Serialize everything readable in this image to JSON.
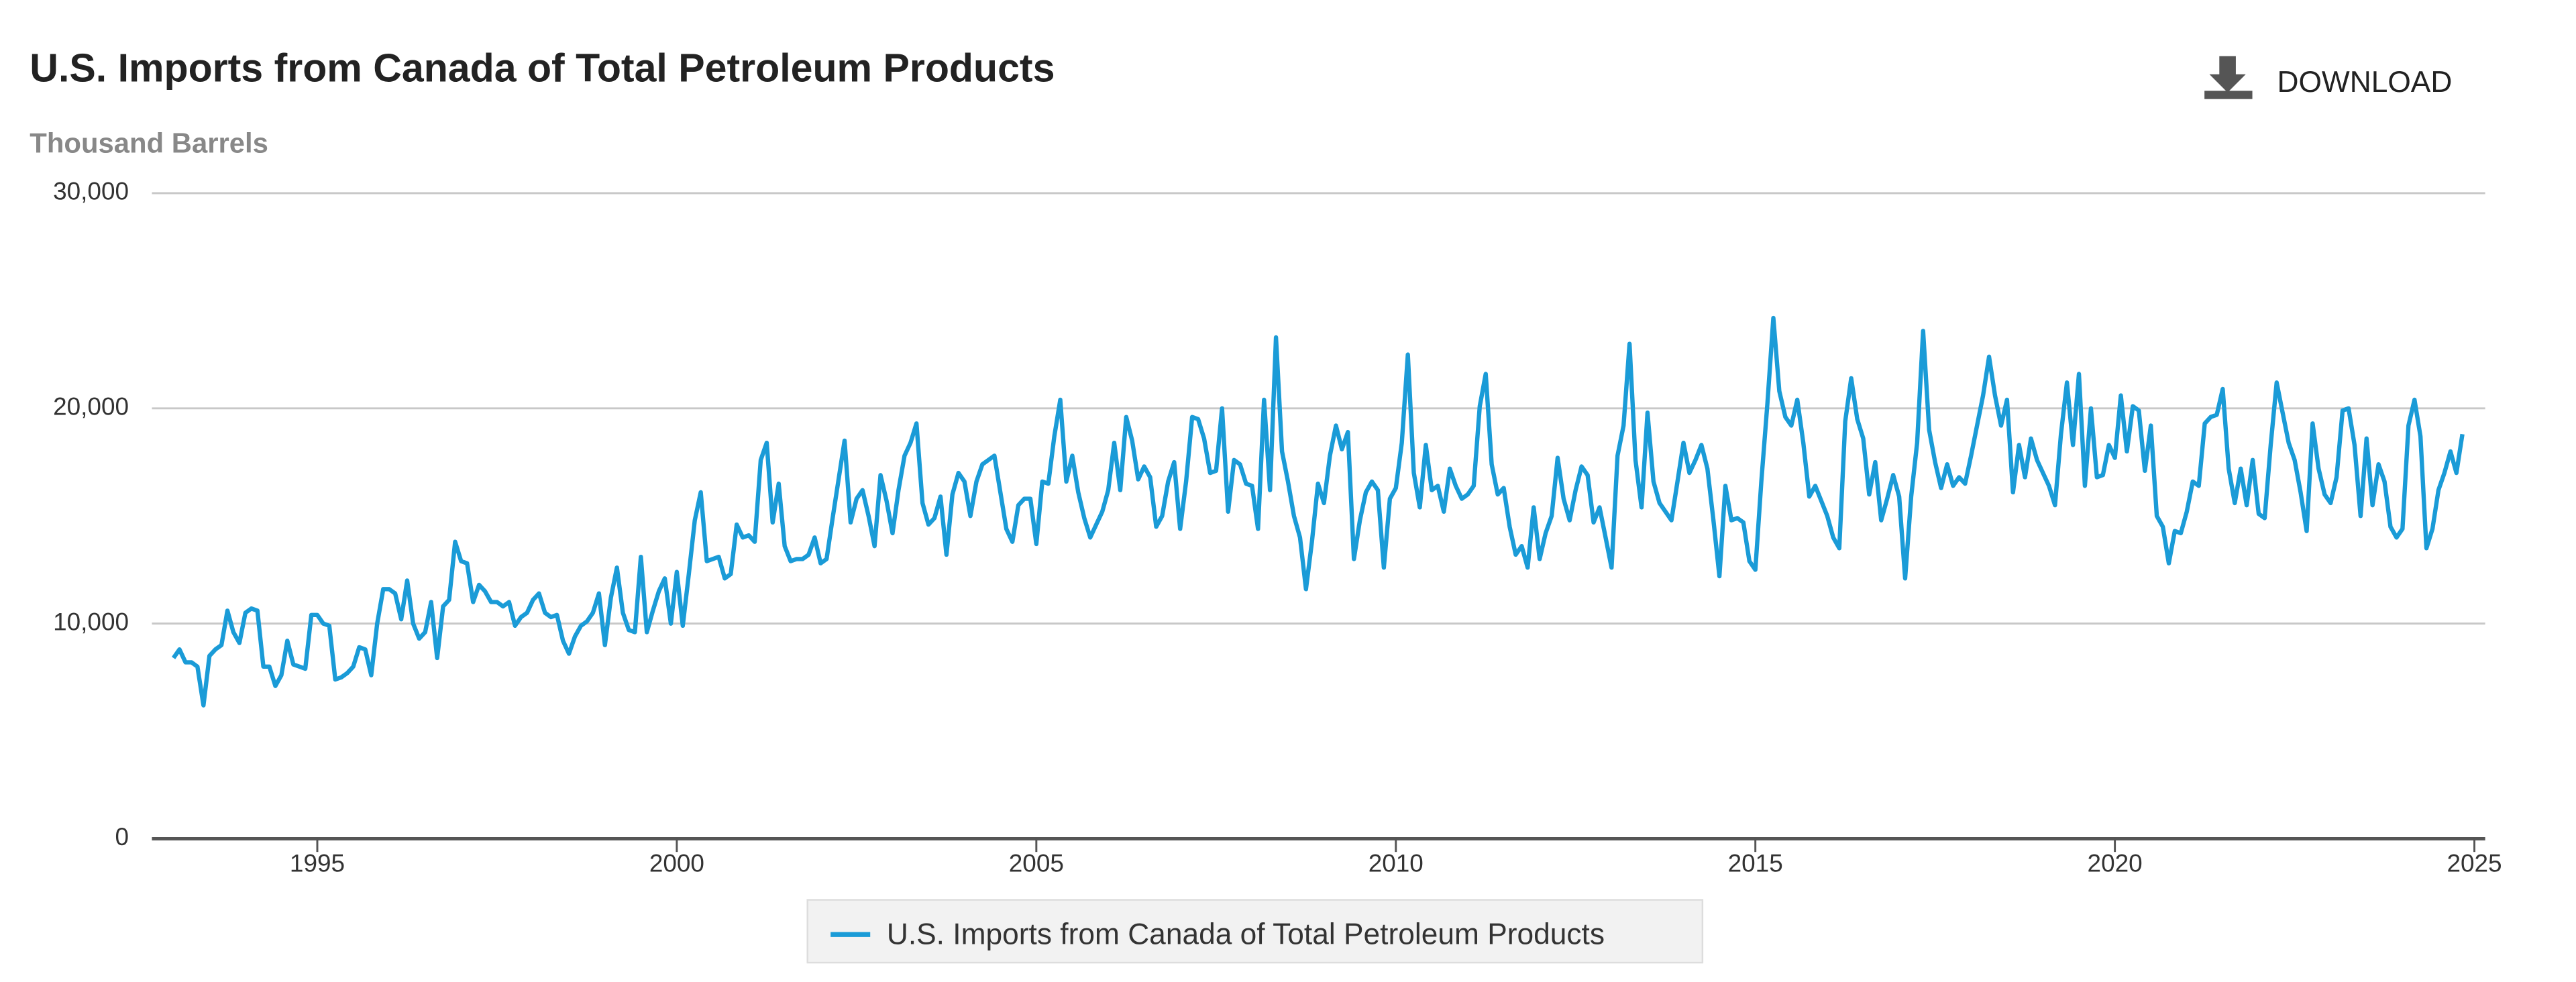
{
  "toolbar": {
    "download": "DOWNLOAD"
  },
  "chart_data": {
    "type": "line",
    "title": "U.S. Imports from Canada of Total Petroleum Products",
    "y_label": "Thousand Barrels",
    "xlim": [
      1992.7,
      2025.15
    ],
    "xticks": [
      1995,
      2000,
      2005,
      2010,
      2015,
      2020,
      2025
    ],
    "ylim": [
      0,
      30000
    ],
    "yticks": [
      0,
      {
        "value": 10000,
        "label": "10,000"
      },
      {
        "value": 20000,
        "label": "20,000"
      },
      {
        "value": 30000,
        "label": "30,000"
      }
    ],
    "grid": true,
    "legend": "bottom",
    "x": [
      1993,
      1993.083,
      1993.167,
      1993.25,
      1993.333,
      1993.417,
      1993.5,
      1993.583,
      1993.667,
      1993.75,
      1993.833,
      1993.917,
      1994,
      1994.083,
      1994.167,
      1994.25,
      1994.333,
      1994.417,
      1994.5,
      1994.583,
      1994.667,
      1994.75,
      1994.833,
      1994.917,
      1995,
      1995.083,
      1995.167,
      1995.25,
      1995.333,
      1995.417,
      1995.5,
      1995.583,
      1995.667,
      1995.75,
      1995.833,
      1995.917,
      1996,
      1996.083,
      1996.167,
      1996.25,
      1996.333,
      1996.417,
      1996.5,
      1996.583,
      1996.667,
      1996.75,
      1996.833,
      1996.917,
      1997,
      1997.083,
      1997.167,
      1997.25,
      1997.333,
      1997.417,
      1997.5,
      1997.583,
      1997.667,
      1997.75,
      1997.833,
      1997.917,
      1998,
      1998.083,
      1998.167,
      1998.25,
      1998.333,
      1998.417,
      1998.5,
      1998.583,
      1998.667,
      1998.75,
      1998.833,
      1998.917,
      1999,
      1999.083,
      1999.167,
      1999.25,
      1999.333,
      1999.417,
      1999.5,
      1999.583,
      1999.667,
      1999.75,
      1999.833,
      1999.917,
      2000,
      2000.083,
      2000.167,
      2000.25,
      2000.333,
      2000.417,
      2000.5,
      2000.583,
      2000.667,
      2000.75,
      2000.833,
      2000.917,
      2001,
      2001.083,
      2001.167,
      2001.25,
      2001.333,
      2001.417,
      2001.5,
      2001.583,
      2001.667,
      2001.75,
      2001.833,
      2001.917,
      2002,
      2002.083,
      2002.167,
      2002.25,
      2002.333,
      2002.417,
      2002.5,
      2002.583,
      2002.667,
      2002.75,
      2002.833,
      2002.917,
      2003,
      2003.083,
      2003.167,
      2003.25,
      2003.333,
      2003.417,
      2003.5,
      2003.583,
      2003.667,
      2003.75,
      2003.833,
      2003.917,
      2004,
      2004.083,
      2004.167,
      2004.25,
      2004.333,
      2004.417,
      2004.5,
      2004.583,
      2004.667,
      2004.75,
      2004.833,
      2004.917,
      2005,
      2005.083,
      2005.167,
      2005.25,
      2005.333,
      2005.417,
      2005.5,
      2005.583,
      2005.667,
      2005.75,
      2005.833,
      2005.917,
      2006,
      2006.083,
      2006.167,
      2006.25,
      2006.333,
      2006.417,
      2006.5,
      2006.583,
      2006.667,
      2006.75,
      2006.833,
      2006.917,
      2007,
      2007.083,
      2007.167,
      2007.25,
      2007.333,
      2007.417,
      2007.5,
      2007.583,
      2007.667,
      2007.75,
      2007.833,
      2007.917,
      2008,
      2008.083,
      2008.167,
      2008.25,
      2008.333,
      2008.417,
      2008.5,
      2008.583,
      2008.667,
      2008.75,
      2008.833,
      2008.917,
      2009,
      2009.083,
      2009.167,
      2009.25,
      2009.333,
      2009.417,
      2009.5,
      2009.583,
      2009.667,
      2009.75,
      2009.833,
      2009.917,
      2010,
      2010.083,
      2010.167,
      2010.25,
      2010.333,
      2010.417,
      2010.5,
      2010.583,
      2010.667,
      2010.75,
      2010.833,
      2010.917,
      2011,
      2011.083,
      2011.167,
      2011.25,
      2011.333,
      2011.417,
      2011.5,
      2011.583,
      2011.667,
      2011.75,
      2011.833,
      2011.917,
      2012,
      2012.083,
      2012.167,
      2012.25,
      2012.333,
      2012.417,
      2012.5,
      2012.583,
      2012.667,
      2012.75,
      2012.833,
      2012.917,
      2013,
      2013.083,
      2013.167,
      2013.25,
      2013.333,
      2013.417,
      2013.5,
      2013.583,
      2013.667,
      2013.75,
      2013.833,
      2013.917,
      2014,
      2014.083,
      2014.167,
      2014.25,
      2014.333,
      2014.417,
      2014.5,
      2014.583,
      2014.667,
      2014.75,
      2014.833,
      2014.917,
      2015,
      2015.083,
      2015.167,
      2015.25,
      2015.333,
      2015.417,
      2015.5,
      2015.583,
      2015.667,
      2015.75,
      2015.833,
      2015.917,
      2016,
      2016.083,
      2016.167,
      2016.25,
      2016.333,
      2016.417,
      2016.5,
      2016.583,
      2016.667,
      2016.75,
      2016.833,
      2016.917,
      2017,
      2017.083,
      2017.167,
      2017.25,
      2017.333,
      2017.417,
      2017.5,
      2017.583,
      2017.667,
      2017.75,
      2017.833,
      2017.917,
      2018,
      2018.083,
      2018.167,
      2018.25,
      2018.333,
      2018.417,
      2018.5,
      2018.583,
      2018.667,
      2018.75,
      2018.833,
      2018.917,
      2019,
      2019.083,
      2019.167,
      2019.25,
      2019.333,
      2019.417,
      2019.5,
      2019.583,
      2019.667,
      2019.75,
      2019.833,
      2019.917,
      2020,
      2020.083,
      2020.167,
      2020.25,
      2020.333,
      2020.417,
      2020.5,
      2020.583,
      2020.667,
      2020.75,
      2020.833,
      2020.917,
      2021,
      2021.083,
      2021.167,
      2021.25,
      2021.333,
      2021.417,
      2021.5,
      2021.583,
      2021.667,
      2021.75,
      2021.833,
      2021.917,
      2022,
      2022.083,
      2022.167,
      2022.25,
      2022.333,
      2022.417,
      2022.5,
      2022.583,
      2022.667,
      2022.75,
      2022.833,
      2022.917,
      2023,
      2023.083,
      2023.167,
      2023.25,
      2023.333,
      2023.417,
      2023.5,
      2023.583,
      2023.667,
      2023.75,
      2023.833,
      2023.917,
      2024,
      2024.083,
      2024.167,
      2024.25,
      2024.333,
      2024.417,
      2024.5,
      2024.583,
      2024.667,
      2024.75,
      2024.833
    ],
    "series": [
      {
        "name": "U.S. Imports from Canada of Total Petroleum Products",
        "color": "#1a9bd7",
        "values": [
          8400,
          8800,
          8200,
          8200,
          8000,
          6200,
          8500,
          8800,
          9000,
          10600,
          9600,
          9100,
          10500,
          10700,
          10600,
          8000,
          8000,
          7100,
          7600,
          9200,
          8100,
          8000,
          7900,
          10400,
          10400,
          10000,
          9900,
          7400,
          7500,
          7700,
          8000,
          8900,
          8800,
          7600,
          10000,
          11600,
          11600,
          11400,
          10200,
          12000,
          10000,
          9300,
          9600,
          11000,
          8400,
          10800,
          11100,
          13800,
          12900,
          12800,
          11000,
          11800,
          11500,
          11000,
          11000,
          10800,
          11000,
          9900,
          10300,
          10500,
          11100,
          11400,
          10500,
          10300,
          10400,
          9200,
          8600,
          9400,
          9900,
          10100,
          10500,
          11400,
          9000,
          11200,
          12600,
          10500,
          9700,
          9600,
          13100,
          9600,
          10600,
          11500,
          12100,
          10000,
          12400,
          9900,
          12300,
          14800,
          16100,
          12900,
          13000,
          13100,
          12100,
          12300,
          14600,
          14000,
          14100,
          13800,
          17600,
          18400,
          14700,
          16500,
          13600,
          12900,
          13000,
          13000,
          13200,
          14000,
          12800,
          13000,
          14900,
          16700,
          18500,
          14700,
          15800,
          16200,
          15000,
          13600,
          16900,
          15700,
          14200,
          16200,
          17800,
          18400,
          19300,
          15600,
          14600,
          14900,
          15900,
          13200,
          16000,
          17000,
          16600,
          15000,
          16600,
          17400,
          17600,
          17800,
          16100,
          14400,
          13800,
          15500,
          15800,
          15800,
          13700,
          16600,
          16500,
          18700,
          20400,
          16600,
          17800,
          16100,
          14900,
          14000,
          14600,
          15200,
          16200,
          18400,
          16200,
          19600,
          18500,
          16700,
          17300,
          16800,
          14500,
          15000,
          16600,
          17500,
          14400,
          16600,
          19600,
          19500,
          18600,
          17000,
          17100,
          20000,
          15200,
          17600,
          17400,
          16500,
          16400,
          14400,
          20400,
          16200,
          23300,
          18000,
          16600,
          15000,
          14000,
          11600,
          13800,
          16500,
          15600,
          17800,
          19200,
          18100,
          18900,
          13000,
          14800,
          16100,
          16600,
          16200,
          12600,
          15800,
          16300,
          18400,
          22500,
          17000,
          15400,
          18300,
          16200,
          16400,
          15200,
          17200,
          16400,
          15800,
          16000,
          16400,
          20100,
          21600,
          17400,
          16000,
          16300,
          14500,
          13200,
          13600,
          12600,
          15400,
          13000,
          14200,
          15000,
          17700,
          15800,
          14800,
          16200,
          17300,
          16900,
          14700,
          15400,
          14000,
          12600,
          17800,
          19200,
          23000,
          17600,
          15400,
          19800,
          16600,
          15600,
          15200,
          14800,
          16600,
          18400,
          17000,
          17600,
          18300,
          17200,
          14800,
          12200,
          16400,
          14800,
          14900,
          14700,
          12900,
          12500,
          16600,
          20200,
          24200,
          20800,
          19600,
          19200,
          20400,
          18400,
          15900,
          16400,
          15700,
          15000,
          14000,
          13500,
          19400,
          21400,
          19500,
          18600,
          16000,
          17500,
          14800,
          15800,
          16900,
          15900,
          12100,
          15900,
          18400,
          23600,
          19000,
          17500,
          16300,
          17400,
          16400,
          16800,
          16500,
          17800,
          19200,
          20600,
          22400,
          20600,
          19200,
          20400,
          16100,
          18300,
          16800,
          18600,
          17600,
          17000,
          16400,
          15500,
          18800,
          21200,
          18300,
          21600,
          16400,
          20000,
          16800,
          16900,
          18300,
          17700,
          20600,
          18000,
          20100,
          19900,
          17100,
          19200,
          15000,
          14500,
          12800,
          14300,
          14200,
          15200,
          16600,
          16400,
          19300,
          19600,
          19700,
          20900,
          17200,
          15600,
          17200,
          15500,
          17600,
          15100,
          14900,
          18300,
          21200,
          19800,
          18400,
          17600,
          16100,
          14300,
          19300,
          17200,
          16000,
          15600,
          16800,
          19900,
          20000,
          18300,
          15000,
          18600,
          15500,
          17400,
          16600,
          14500,
          14000,
          14400,
          19200,
          20400,
          18700,
          13500,
          14400,
          16200,
          17000,
          18000,
          17000,
          18800
        ]
      }
    ]
  }
}
